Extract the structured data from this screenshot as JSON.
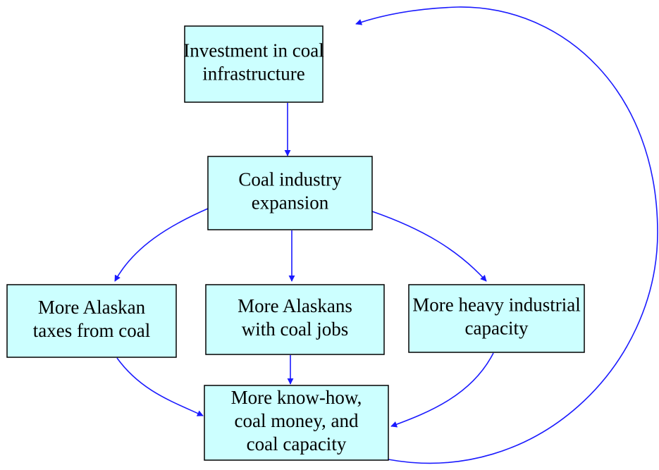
{
  "nodes": [
    {
      "label": [
        "Investment in coal",
        "infrastructure"
      ]
    },
    {
      "label": [
        "Coal industry",
        "expansion"
      ]
    },
    {
      "label": [
        "More Alaskan",
        "taxes from coal"
      ]
    },
    {
      "label": [
        "More Alaskans",
        "with coal jobs"
      ]
    },
    {
      "label": [
        "More heavy industrial",
        "capacity"
      ]
    },
    {
      "label": [
        "More know-how,",
        "coal money, and",
        "coal capacity"
      ]
    }
  ]
}
